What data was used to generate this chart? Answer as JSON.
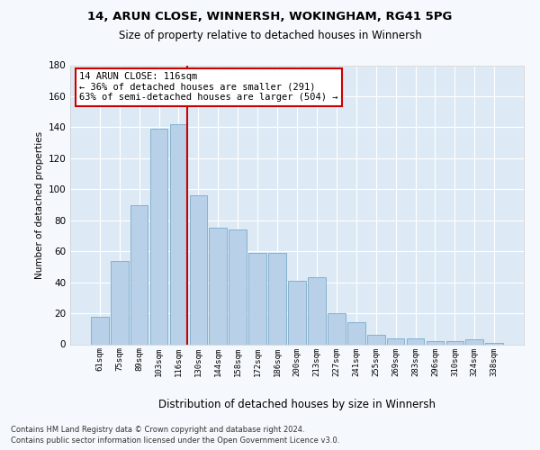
{
  "title1": "14, ARUN CLOSE, WINNERSH, WOKINGHAM, RG41 5PG",
  "title2": "Size of property relative to detached houses in Winnersh",
  "xlabel": "Distribution of detached houses by size in Winnersh",
  "ylabel": "Number of detached properties",
  "categories": [
    "61sqm",
    "75sqm",
    "89sqm",
    "103sqm",
    "116sqm",
    "130sqm",
    "144sqm",
    "158sqm",
    "172sqm",
    "186sqm",
    "200sqm",
    "213sqm",
    "227sqm",
    "241sqm",
    "255sqm",
    "269sqm",
    "283sqm",
    "296sqm",
    "310sqm",
    "324sqm",
    "338sqm"
  ],
  "values": [
    18,
    54,
    90,
    139,
    142,
    96,
    75,
    74,
    59,
    59,
    41,
    43,
    20,
    14,
    6,
    4,
    4,
    2,
    2,
    3,
    1
  ],
  "bar_color": "#b8d0e8",
  "bar_edge_color": "#7aaac8",
  "highlight_index": 4,
  "highlight_line_color": "#cc0000",
  "ylim": [
    0,
    180
  ],
  "yticks": [
    0,
    20,
    40,
    60,
    80,
    100,
    120,
    140,
    160,
    180
  ],
  "bg_color": "#ddeaf6",
  "grid_color": "#ffffff",
  "fig_bg_color": "#f5f8fc",
  "footer_line1": "Contains HM Land Registry data © Crown copyright and database right 2024.",
  "footer_line2": "Contains public sector information licensed under the Open Government Licence v3.0.",
  "ann_line1": "14 ARUN CLOSE: 116sqm",
  "ann_line2": "← 36% of detached houses are smaller (291)",
  "ann_line3": "63% of semi-detached houses are larger (504) →"
}
